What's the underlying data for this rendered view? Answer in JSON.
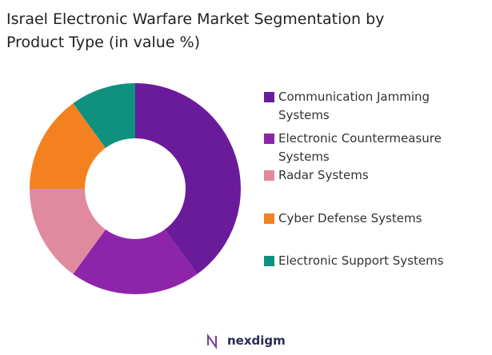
{
  "chart_data": {
    "type": "donut",
    "title": "Israel Electronic Warfare Market Segmentation by Product Type (in value %)",
    "categories": [
      "Communication Jamming Systems",
      "Electronic Countermeasure Systems",
      "Radar Systems",
      "Cyber Defense Systems",
      "Electronic Support Systems"
    ],
    "values": [
      40,
      20,
      15,
      15,
      10
    ],
    "colors": [
      "#6a1b9a",
      "#8e24aa",
      "#e08a9f",
      "#f38120",
      "#0f9180"
    ],
    "legend": "right"
  },
  "brand": "nexdigm"
}
